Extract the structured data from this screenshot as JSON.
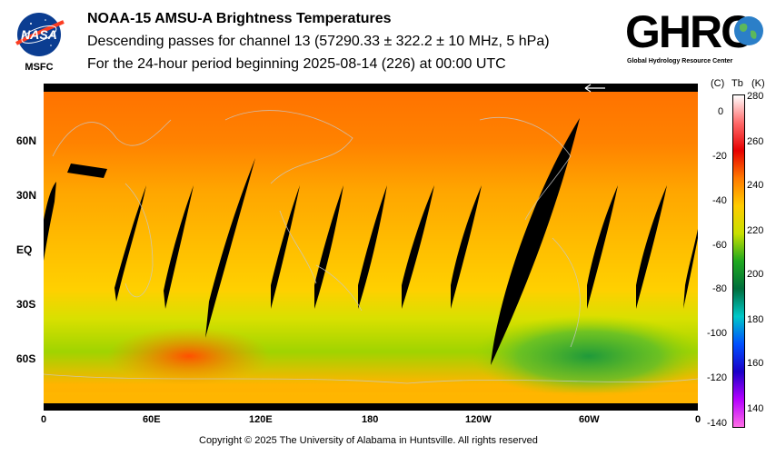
{
  "header": {
    "nasa_logo_text": "NASA",
    "nasa_center": "MSFC",
    "title": "NOAA-15 AMSU-A Brightness Temperatures",
    "subtitle": "Descending passes for channel 13 (57290.33 ± 322.2 ± 10 MHz, 5 hPa)",
    "period": "For the 24-hour period beginning 2025-08-14 (226) at 00:00 UTC",
    "ghrc_logo_text": "GHRC",
    "ghrc_tagline": "Global Hydrology Resource Center"
  },
  "map": {
    "lat_labels": [
      "60N",
      "30N",
      "EQ",
      "30S",
      "60S"
    ],
    "lon_labels": [
      "0",
      "60E",
      "120E",
      "180",
      "120W",
      "60W",
      "0"
    ]
  },
  "colorbar": {
    "header_c": "(C)",
    "header_tb": "Tb",
    "header_k": "(K)",
    "celsius_ticks": [
      "0",
      "-20",
      "-40",
      "-60",
      "-80",
      "-100",
      "-120",
      "-140"
    ],
    "kelvin_ticks": [
      "280",
      "260",
      "240",
      "220",
      "200",
      "180",
      "160",
      "140"
    ],
    "gradient_stops": [
      "#ffffff",
      "#ff6a6a",
      "#e60000",
      "#ff7a00",
      "#ffcc00",
      "#c8e000",
      "#1fa81f",
      "#006e3c",
      "#00c8c8",
      "#0050ff",
      "#1a00c8",
      "#b400ff",
      "#ff6ee6"
    ]
  },
  "footer": {
    "copyright": "Copyright © 2025 The University of Alabama in Huntsville.  All rights reserved"
  }
}
